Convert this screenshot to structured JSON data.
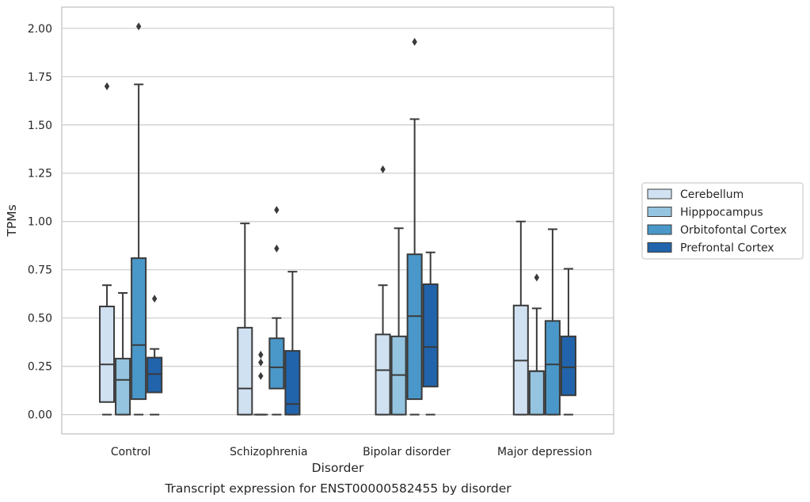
{
  "chart_data": {
    "type": "box",
    "xlabel": "Disorder",
    "ylabel": "TPMs",
    "caption": "Transcript expression for ENST00000582455 by disorder",
    "categories": [
      "Control",
      "Schizophrenia",
      "Bipolar disorder",
      "Major depression"
    ],
    "ylim": [
      -0.1,
      2.11
    ],
    "yticks": [
      0.0,
      0.25,
      0.5,
      0.75,
      1.0,
      1.25,
      1.5,
      1.75,
      2.0
    ],
    "ytick_labels": [
      "0.00",
      "0.25",
      "0.50",
      "0.75",
      "1.00",
      "1.25",
      "1.50",
      "1.75",
      "2.00"
    ],
    "grid": "horizontal",
    "legend_position": "right",
    "series": [
      {
        "name": "Cerebellum",
        "color": "#d0e1f2",
        "boxes": [
          {
            "whislo": 0.0,
            "q1": 0.065,
            "med": 0.26,
            "q3": 0.56,
            "whishi": 0.67,
            "fliers": [
              1.7
            ]
          },
          {
            "whislo": 0.0,
            "q1": 0.0,
            "med": 0.135,
            "q3": 0.45,
            "whishi": 0.99,
            "fliers": []
          },
          {
            "whislo": 0.0,
            "q1": 0.0,
            "med": 0.23,
            "q3": 0.415,
            "whishi": 0.67,
            "fliers": [
              1.27
            ]
          },
          {
            "whislo": 0.0,
            "q1": 0.0,
            "med": 0.28,
            "q3": 0.565,
            "whishi": 1.0,
            "fliers": []
          }
        ]
      },
      {
        "name": "Hipppocampus",
        "color": "#94c4df",
        "boxes": [
          {
            "whislo": 0.0,
            "q1": 0.0,
            "med": 0.18,
            "q3": 0.29,
            "whishi": 0.63,
            "fliers": []
          },
          {
            "whislo": 0.0,
            "q1": 0.0,
            "med": 0.0,
            "q3": 0.0,
            "whishi": 0.0,
            "fliers": [
              0.2,
              0.27,
              0.31
            ]
          },
          {
            "whislo": 0.0,
            "q1": 0.0,
            "med": 0.205,
            "q3": 0.405,
            "whishi": 0.965,
            "fliers": []
          },
          {
            "whislo": 0.0,
            "q1": 0.0,
            "med": 0.225,
            "q3": 0.225,
            "whishi": 0.55,
            "fliers": [
              0.71
            ]
          }
        ]
      },
      {
        "name": "Orbitofontal Cortex",
        "color": "#4a98c9",
        "boxes": [
          {
            "whislo": 0.0,
            "q1": 0.08,
            "med": 0.36,
            "q3": 0.81,
            "whishi": 1.71,
            "fliers": [
              2.01
            ]
          },
          {
            "whislo": 0.0,
            "q1": 0.135,
            "med": 0.245,
            "q3": 0.395,
            "whishi": 0.5,
            "fliers": [
              0.86,
              1.06
            ]
          },
          {
            "whislo": 0.0,
            "q1": 0.08,
            "med": 0.51,
            "q3": 0.83,
            "whishi": 1.53,
            "fliers": [
              1.93
            ]
          },
          {
            "whislo": 0.0,
            "q1": 0.0,
            "med": 0.26,
            "q3": 0.485,
            "whishi": 0.96,
            "fliers": []
          }
        ]
      },
      {
        "name": "Prefrontal Cortex",
        "color": "#2164ab",
        "boxes": [
          {
            "whislo": 0.0,
            "q1": 0.115,
            "med": 0.21,
            "q3": 0.295,
            "whishi": 0.34,
            "fliers": [
              0.6
            ]
          },
          {
            "whislo": 0.0,
            "q1": 0.0,
            "med": 0.055,
            "q3": 0.33,
            "whishi": 0.74,
            "fliers": []
          },
          {
            "whislo": 0.0,
            "q1": 0.145,
            "med": 0.35,
            "q3": 0.675,
            "whishi": 0.84,
            "fliers": []
          },
          {
            "whislo": 0.0,
            "q1": 0.1,
            "med": 0.245,
            "q3": 0.405,
            "whishi": 0.755,
            "fliers": []
          }
        ]
      }
    ]
  }
}
